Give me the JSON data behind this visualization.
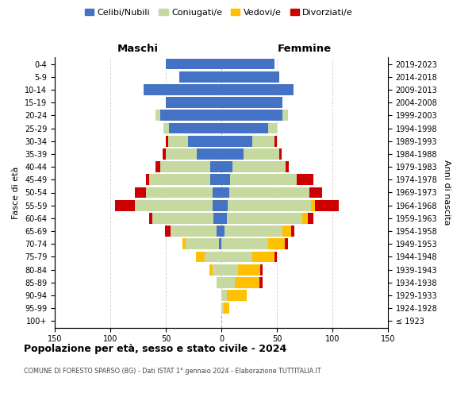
{
  "age_groups": [
    "100+",
    "95-99",
    "90-94",
    "85-89",
    "80-84",
    "75-79",
    "70-74",
    "65-69",
    "60-64",
    "55-59",
    "50-54",
    "45-49",
    "40-44",
    "35-39",
    "30-34",
    "25-29",
    "20-24",
    "15-19",
    "10-14",
    "5-9",
    "0-4"
  ],
  "birth_years": [
    "≤ 1923",
    "1924-1928",
    "1929-1933",
    "1934-1938",
    "1939-1943",
    "1944-1948",
    "1949-1953",
    "1954-1958",
    "1959-1963",
    "1964-1968",
    "1969-1973",
    "1974-1978",
    "1979-1983",
    "1984-1988",
    "1989-1993",
    "1994-1998",
    "1999-2003",
    "2004-2008",
    "2009-2013",
    "2014-2018",
    "2019-2023"
  ],
  "males": {
    "celibe": [
      0,
      0,
      0,
      0,
      0,
      0,
      2,
      4,
      7,
      8,
      8,
      10,
      10,
      22,
      30,
      47,
      55,
      50,
      70,
      38,
      50
    ],
    "coniugato": [
      0,
      0,
      0,
      4,
      8,
      15,
      30,
      42,
      55,
      70,
      60,
      55,
      45,
      28,
      18,
      5,
      4,
      0,
      0,
      0,
      0
    ],
    "vedovo": [
      0,
      0,
      0,
      0,
      3,
      8,
      3,
      0,
      0,
      0,
      0,
      0,
      0,
      0,
      0,
      0,
      0,
      0,
      0,
      0,
      0
    ],
    "divorziato": [
      0,
      0,
      0,
      0,
      0,
      0,
      0,
      5,
      3,
      18,
      10,
      3,
      4,
      3,
      2,
      0,
      0,
      0,
      0,
      0,
      0
    ]
  },
  "females": {
    "nubile": [
      0,
      0,
      0,
      0,
      0,
      0,
      0,
      3,
      5,
      6,
      7,
      8,
      10,
      20,
      28,
      42,
      55,
      55,
      65,
      52,
      48
    ],
    "coniugata": [
      0,
      2,
      5,
      12,
      15,
      28,
      42,
      52,
      68,
      75,
      72,
      60,
      48,
      32,
      20,
      8,
      5,
      0,
      0,
      0,
      0
    ],
    "vedova": [
      0,
      5,
      18,
      22,
      20,
      20,
      15,
      8,
      5,
      3,
      0,
      0,
      0,
      0,
      0,
      0,
      0,
      0,
      0,
      0,
      0
    ],
    "divorziata": [
      0,
      0,
      0,
      3,
      2,
      2,
      3,
      3,
      5,
      22,
      12,
      15,
      3,
      2,
      2,
      0,
      0,
      0,
      0,
      0,
      0
    ]
  },
  "colors": {
    "celibe": "#4472c4",
    "coniugato": "#c5d9a0",
    "vedovo": "#ffc000",
    "divorziato": "#cc0000"
  },
  "legend_labels": [
    "Celibi/Nubili",
    "Coniugati/e",
    "Vedovi/e",
    "Divorziati/e"
  ],
  "title": "Popolazione per età, sesso e stato civile - 2024",
  "subtitle": "COMUNE DI FORESTO SPARSO (BG) - Dati ISTAT 1° gennaio 2024 - Elaborazione TUTTITALIA.IT",
  "xlabel_left": "Maschi",
  "xlabel_right": "Femmine",
  "ylabel_left": "Fasce di età",
  "ylabel_right": "Anni di nascita",
  "xlim": 150
}
